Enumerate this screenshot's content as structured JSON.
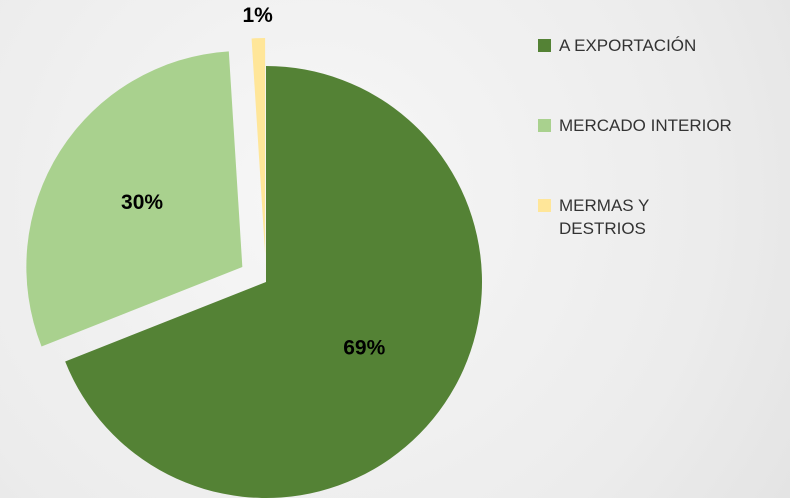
{
  "chart_data": {
    "type": "pie",
    "categories": [
      "A EXPORTACIÓN",
      "MERCADO INTERIOR",
      "MERMAS Y DESTRIOS"
    ],
    "values": [
      69,
      30,
      1
    ],
    "value_labels": [
      "69%",
      "30%",
      "1%"
    ],
    "colors": [
      "#548235",
      "#a9d18e",
      "#ffe699"
    ],
    "explode": [
      false,
      true,
      true
    ],
    "legend": "right"
  }
}
